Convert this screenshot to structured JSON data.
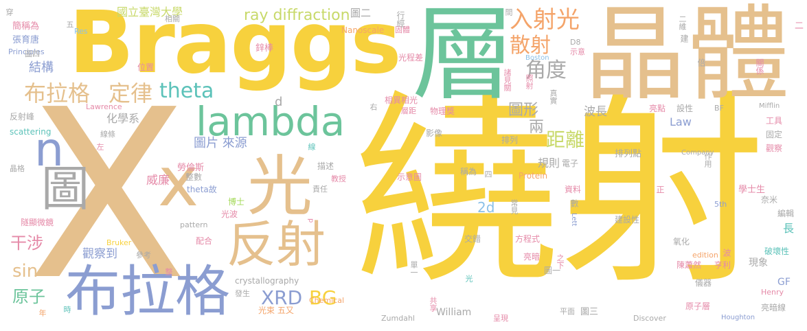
{
  "palette": {
    "gold": "#f7d13d",
    "tan": "#e5c08d",
    "green": "#6cc49b",
    "blue": "#8b9dd1",
    "grey": "#a9a9a9",
    "pink": "#e58aa8",
    "lime": "#a3d957",
    "orange": "#f4a46a",
    "teal": "#5cc2b9",
    "lightblue": "#8bc0e8",
    "olive": "#c8d96a"
  },
  "words": [
    {
      "text": "繞射",
      "color": "gold"
    },
    {
      "text": "X",
      "color": "tan"
    },
    {
      "text": "Braggs",
      "color": "gold"
    },
    {
      "text": "層",
      "color": "green"
    },
    {
      "text": "晶體",
      "color": "tan"
    },
    {
      "text": "lambda",
      "color": "green"
    },
    {
      "text": "布拉格",
      "color": "blue"
    },
    {
      "text": "x",
      "color": "tan"
    },
    {
      "text": "光",
      "color": "tan"
    },
    {
      "text": "反射",
      "color": "tan"
    },
    {
      "text": "n",
      "color": "blue"
    },
    {
      "text": "圖",
      "color": "grey"
    },
    {
      "text": "入射光",
      "color": "orange"
    },
    {
      "text": "散射",
      "color": "orange"
    },
    {
      "text": "角度",
      "color": "grey"
    },
    {
      "text": "布拉格",
      "color": "tan"
    },
    {
      "text": "定律",
      "color": "tan"
    },
    {
      "text": "theta",
      "color": "teal"
    },
    {
      "text": "ray diffraction",
      "color": "olive"
    },
    {
      "text": "國立臺灣大學",
      "color": "olive"
    },
    {
      "text": "圖二",
      "color": "grey"
    },
    {
      "text": "圖形",
      "color": "grey"
    },
    {
      "text": "兩",
      "color": "grey"
    },
    {
      "text": "距離",
      "color": "olive"
    },
    {
      "text": "規則",
      "color": "grey"
    },
    {
      "text": "波長",
      "color": "grey"
    },
    {
      "text": "Law",
      "color": "blue"
    },
    {
      "text": "2d",
      "color": "lightblue"
    },
    {
      "text": "XRD",
      "color": "blue"
    },
    {
      "text": "BG",
      "color": "gold"
    },
    {
      "text": "干涉",
      "color": "pink"
    },
    {
      "text": "sin",
      "color": "tan"
    },
    {
      "text": "原子",
      "color": "green"
    },
    {
      "text": "威廉",
      "color": "pink"
    },
    {
      "text": "觀察到",
      "color": "blue"
    },
    {
      "text": "圖片 來源",
      "color": "blue"
    },
    {
      "text": "化學系",
      "color": "grey"
    },
    {
      "text": "結構",
      "color": "blue"
    },
    {
      "text": "d",
      "color": "grey"
    },
    {
      "text": "簡稱為",
      "color": "pink"
    },
    {
      "text": "張育唐",
      "color": "blue"
    },
    {
      "text": "Principles",
      "color": "blue"
    },
    {
      "text": "Res",
      "color": "lightblue"
    },
    {
      "text": "圖四",
      "color": "grey"
    },
    {
      "text": "位置",
      "color": "pink"
    },
    {
      "text": "鋅棒",
      "color": "pink"
    },
    {
      "text": "光程差",
      "color": "pink"
    },
    {
      "text": "Nanoscale",
      "color": "orange"
    },
    {
      "text": "固體",
      "color": "pink"
    },
    {
      "text": "相關",
      "color": "grey"
    },
    {
      "text": "D8",
      "color": "grey"
    },
    {
      "text": "示意",
      "color": "pink"
    },
    {
      "text": "Boston",
      "color": "lightblue"
    },
    {
      "text": "Lawrence",
      "color": "pink"
    },
    {
      "text": "反射峰",
      "color": "grey"
    },
    {
      "text": "scattering",
      "color": "teal"
    },
    {
      "text": "線條",
      "color": "grey"
    },
    {
      "text": "晶格",
      "color": "grey"
    },
    {
      "text": "隧顯微鏡",
      "color": "pink"
    },
    {
      "text": "相異相光",
      "color": "pink"
    },
    {
      "text": "物理獎",
      "color": "pink"
    },
    {
      "text": "層距",
      "color": "pink"
    },
    {
      "text": "亮點",
      "color": "pink"
    },
    {
      "text": "設性",
      "color": "grey"
    },
    {
      "text": "BF",
      "color": "grey"
    },
    {
      "text": "Mifflin",
      "color": "grey"
    },
    {
      "text": "工具",
      "color": "pink"
    },
    {
      "text": "固定",
      "color": "grey"
    },
    {
      "text": "觀察",
      "color": "pink"
    },
    {
      "text": "影像",
      "color": "grey"
    },
    {
      "text": "排列",
      "color": "grey"
    },
    {
      "text": "排列點",
      "color": "grey"
    },
    {
      "text": "電子",
      "color": "grey"
    },
    {
      "text": "勞倫斯",
      "color": "pink"
    },
    {
      "text": "描述",
      "color": "grey"
    },
    {
      "text": "theta故",
      "color": "blue"
    },
    {
      "text": "整數",
      "color": "grey"
    },
    {
      "text": "博士",
      "color": "lime"
    },
    {
      "text": "教授",
      "color": "pink"
    },
    {
      "text": "責任",
      "color": "grey"
    },
    {
      "text": "示意圖",
      "color": "pink"
    },
    {
      "text": "稱為",
      "color": "grey"
    },
    {
      "text": "Protein",
      "color": "orange"
    },
    {
      "text": "資料",
      "color": "pink"
    },
    {
      "text": "學士生",
      "color": "pink"
    },
    {
      "text": "奈米",
      "color": "grey"
    },
    {
      "text": "5th",
      "color": "blue"
    },
    {
      "text": "pattern",
      "color": "grey"
    },
    {
      "text": "光波",
      "color": "pink"
    },
    {
      "text": "Bruker",
      "color": "gold"
    },
    {
      "text": "配合",
      "color": "pink"
    },
    {
      "text": "參考",
      "color": "grey"
    },
    {
      "text": "crystallography",
      "color": "grey"
    },
    {
      "text": "發生",
      "color": "grey"
    },
    {
      "text": "光束 五又",
      "color": "orange"
    },
    {
      "text": "Chemical",
      "color": "orange"
    },
    {
      "text": "交錯",
      "color": "grey"
    },
    {
      "text": "方程式",
      "color": "pink"
    },
    {
      "text": "建設性",
      "color": "grey"
    },
    {
      "text": "氧化",
      "color": "grey"
    },
    {
      "text": "亮暗",
      "color": "pink"
    },
    {
      "text": "edition",
      "color": "orange"
    },
    {
      "text": "陳蕭然",
      "color": "pink"
    },
    {
      "text": "亨利",
      "color": "pink"
    },
    {
      "text": "現象",
      "color": "grey"
    },
    {
      "text": "儀器",
      "color": "grey"
    },
    {
      "text": "圖一",
      "color": "grey"
    },
    {
      "text": "William",
      "color": "grey"
    },
    {
      "text": "圖三",
      "color": "grey"
    },
    {
      "text": "Zumdahl",
      "color": "grey"
    },
    {
      "text": "呈現",
      "color": "pink"
    },
    {
      "text": "平面",
      "color": "grey"
    },
    {
      "text": "Discover",
      "color": "grey"
    },
    {
      "text": "原子層",
      "color": "pink"
    },
    {
      "text": "Houghton",
      "color": "blue"
    },
    {
      "text": "亮暗線",
      "color": "grey"
    },
    {
      "text": "GF",
      "color": "blue"
    },
    {
      "text": "Henry",
      "color": "pink"
    },
    {
      "text": "破壞性",
      "color": "teal"
    },
    {
      "text": "編輯",
      "color": "grey"
    },
    {
      "text": "長",
      "color": "teal"
    },
    {
      "text": "Company",
      "color": "grey"
    },
    {
      "text": "關係",
      "color": "pink"
    },
    {
      "text": "倍",
      "color": "grey"
    },
    {
      "text": "建",
      "color": "grey"
    },
    {
      "text": "二維",
      "color": "grey"
    },
    {
      "text": "二",
      "color": "pink"
    },
    {
      "text": "間",
      "color": "grey"
    },
    {
      "text": "行經",
      "color": "grey"
    },
    {
      "text": "照射",
      "color": "pink"
    },
    {
      "text": "諸見關",
      "color": "pink"
    },
    {
      "text": "作用",
      "color": "grey"
    },
    {
      "text": "真實",
      "color": "grey"
    },
    {
      "text": "右",
      "color": "grey"
    },
    {
      "text": "左",
      "color": "pink"
    },
    {
      "text": "線",
      "color": "teal"
    },
    {
      "text": "四",
      "color": "grey"
    },
    {
      "text": "正",
      "color": "pink"
    },
    {
      "text": "數",
      "color": "grey"
    },
    {
      "text": "Lett",
      "color": "blue"
    },
    {
      "text": "常見",
      "color": "grey"
    },
    {
      "text": "波",
      "color": "pink"
    },
    {
      "text": "之下",
      "color": "pink"
    },
    {
      "text": "光",
      "color": "teal"
    },
    {
      "text": "單一",
      "color": "grey"
    },
    {
      "text": "共享",
      "color": "pink"
    },
    {
      "text": "整",
      "color": "pink"
    },
    {
      "text": "年",
      "color": "orange"
    },
    {
      "text": "時",
      "color": "teal"
    },
    {
      "text": "p",
      "color": "pink"
    },
    {
      "text": "穿",
      "color": "grey"
    },
    {
      "text": "五",
      "color": "grey"
    }
  ]
}
